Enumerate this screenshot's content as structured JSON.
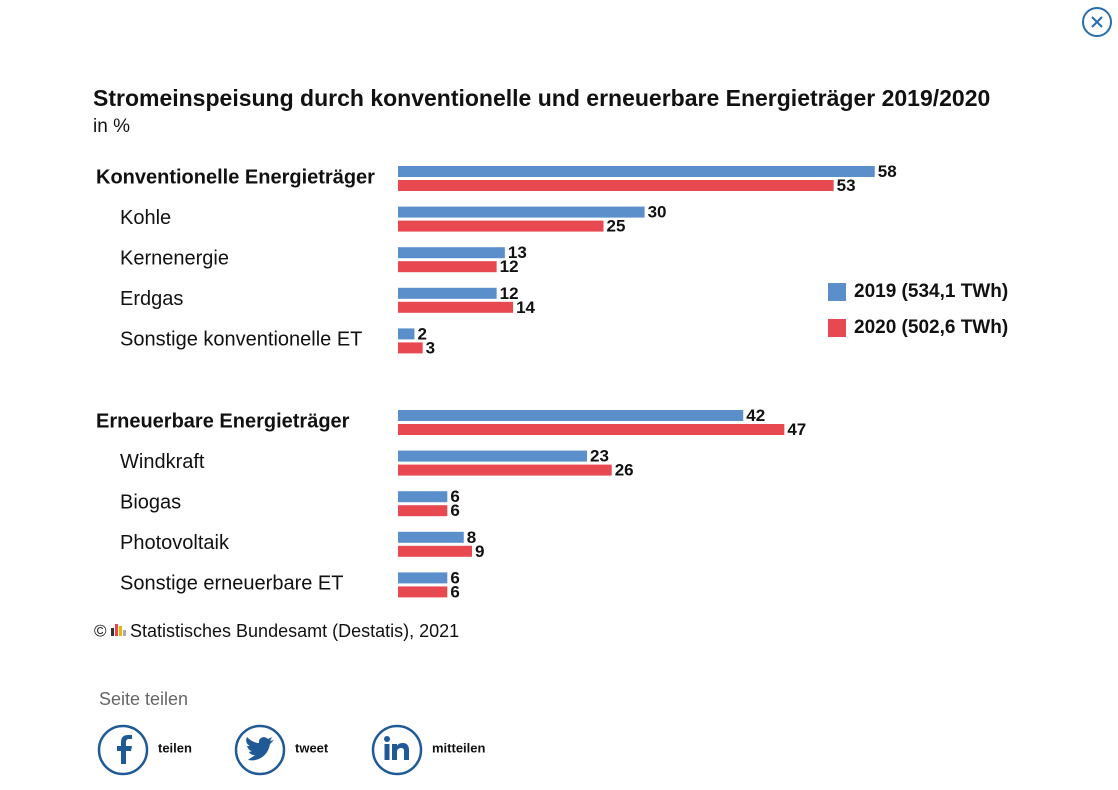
{
  "chart_data": {
    "type": "bar",
    "orientation": "horizontal",
    "title": "Stromeinspeisung durch konventionelle und erneuerbare Energieträger 2019/2020",
    "subtitle": "in %",
    "categories": [
      "Konventionelle Energieträger",
      "Kohle",
      "Kernenergie",
      "Erdgas",
      "Sonstige konventionelle ET",
      "Erneuerbare Energieträger",
      "Windkraft",
      "Biogas",
      "Photovoltaik",
      "Sonstige erneuerbare ET"
    ],
    "series": [
      {
        "name": "2019 (534,1 TWh)",
        "color": "#5b8fcb",
        "values": [
          58,
          30,
          13,
          12,
          2,
          42,
          23,
          6,
          8,
          6
        ]
      },
      {
        "name": "2020 (502,6 TWh)",
        "color": "#e8484f",
        "values": [
          53,
          25,
          12,
          14,
          3,
          47,
          26,
          6,
          9,
          6
        ]
      }
    ],
    "legend": "right"
  },
  "source": {
    "symbol": "©",
    "text": "Statistisches Bundesamt (Destatis), 2021"
  },
  "share": {
    "title": "Seite teilen",
    "buttons": [
      {
        "label": "teilen"
      },
      {
        "label": "tweet"
      },
      {
        "label": "mitteilen"
      }
    ]
  }
}
